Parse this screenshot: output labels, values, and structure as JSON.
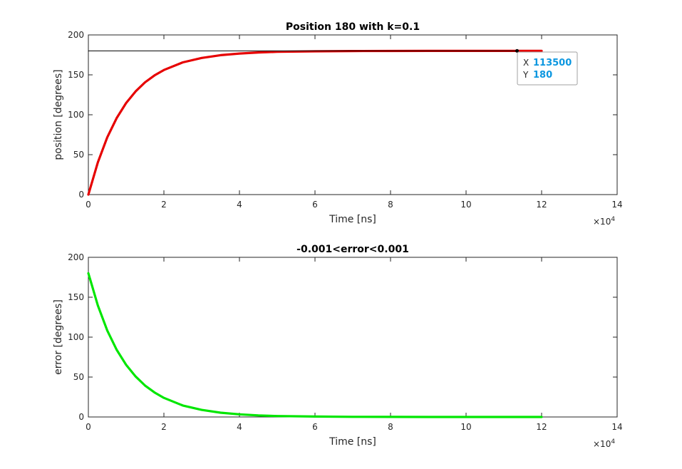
{
  "chart_data": [
    {
      "type": "line",
      "title": "Position 180 with k=0.1",
      "xlabel": "Time [ns]",
      "ylabel": "position [degrees]",
      "xlim": [
        0,
        140000
      ],
      "ylim": [
        0,
        200
      ],
      "x_exponent": "×10",
      "x_exponent_power": "4",
      "x_ticks": [
        0,
        20000,
        40000,
        60000,
        80000,
        100000,
        120000,
        140000
      ],
      "x_tick_labels": [
        "0",
        "2",
        "4",
        "6",
        "8",
        "10",
        "12",
        "14"
      ],
      "y_ticks": [
        0,
        50,
        100,
        150,
        200
      ],
      "y_tick_labels": [
        "0",
        "50",
        "100",
        "150",
        "200"
      ],
      "grid": false,
      "series": [
        {
          "color": "#e60000",
          "x": [
            0,
            2500,
            5000,
            7500,
            10000,
            12500,
            15000,
            17500,
            20000,
            25000,
            30000,
            35000,
            40000,
            45000,
            50000,
            60000,
            70000,
            80000,
            90000,
            100000,
            110000,
            120000
          ],
          "y": [
            0,
            40.4,
            71.7,
            96.0,
            114.7,
            129.3,
            140.6,
            149.3,
            156.1,
            165.6,
            171.2,
            174.6,
            176.7,
            178.0,
            178.8,
            179.5,
            179.8,
            179.9,
            180,
            180,
            180,
            180
          ]
        },
        {
          "color": "#000000",
          "x": [
            0,
            113500
          ],
          "y": [
            180,
            180
          ]
        }
      ],
      "datatip": {
        "x_label": "X",
        "x_value": "113500",
        "y_label": "Y",
        "y_value": "180",
        "x": 113500,
        "y": 180
      }
    },
    {
      "type": "line",
      "title": "-0.001<error<0.001",
      "xlabel": "Time [ns]",
      "ylabel": "error [degrees]",
      "xlim": [
        0,
        140000
      ],
      "ylim": [
        0,
        200
      ],
      "x_exponent": "×10",
      "x_exponent_power": "4",
      "x_ticks": [
        0,
        20000,
        40000,
        60000,
        80000,
        100000,
        120000,
        140000
      ],
      "x_tick_labels": [
        "0",
        "2",
        "4",
        "6",
        "8",
        "10",
        "12",
        "14"
      ],
      "y_ticks": [
        0,
        50,
        100,
        150,
        200
      ],
      "y_tick_labels": [
        "0",
        "50",
        "100",
        "150",
        "200"
      ],
      "grid": false,
      "series": [
        {
          "color": "#00e600",
          "x": [
            0,
            2500,
            5000,
            7500,
            10000,
            12500,
            15000,
            17500,
            20000,
            25000,
            30000,
            35000,
            40000,
            45000,
            50000,
            60000,
            70000,
            80000,
            90000,
            100000,
            110000,
            120000
          ],
          "y": [
            180,
            139.6,
            108.3,
            84.0,
            65.3,
            50.7,
            39.4,
            30.7,
            23.9,
            14.4,
            8.8,
            5.4,
            3.3,
            2.0,
            1.2,
            0.5,
            0.2,
            0.1,
            0,
            0,
            0,
            0
          ]
        }
      ]
    }
  ]
}
